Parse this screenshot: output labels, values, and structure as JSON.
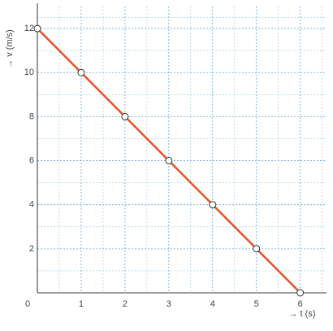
{
  "chart_data": {
    "type": "line",
    "x_label": "→ t (s)",
    "y_label": "→ v (m/s)",
    "x": [
      0,
      1,
      2,
      3,
      4,
      5,
      6
    ],
    "values": [
      12,
      10,
      8,
      6,
      4,
      2,
      0
    ],
    "color": "#e2522a",
    "xlim": [
      0,
      6.6
    ],
    "ylim": [
      0,
      13
    ],
    "xticks": [
      0,
      1,
      2,
      3,
      4,
      5,
      6
    ],
    "yticks": [
      2,
      4,
      6,
      8,
      10,
      12
    ],
    "grid": true
  }
}
